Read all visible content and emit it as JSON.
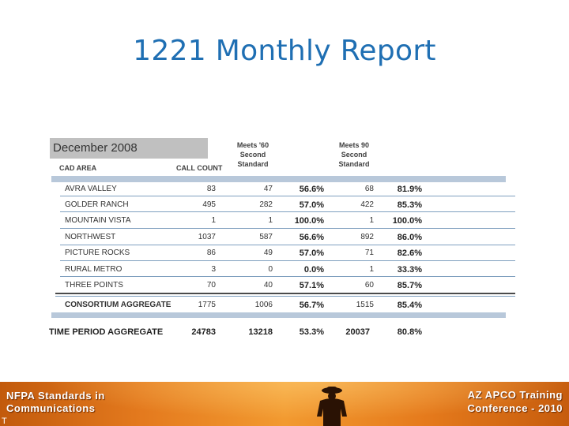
{
  "title": "1221 Monthly Report",
  "report": {
    "month": "December 2008",
    "headers": {
      "cad_area": "CAD AREA",
      "call_count": "CALL COUNT",
      "meets60": [
        "Meets '60",
        "Second",
        "Standard"
      ],
      "meets90": [
        "Meets 90",
        "Second",
        "Standard"
      ]
    },
    "rows": [
      {
        "area": "AVRA VALLEY",
        "calls": "83",
        "m60": "47",
        "p60": "56.6%",
        "m90": "68",
        "p90": "81.9%"
      },
      {
        "area": "GOLDER RANCH",
        "calls": "495",
        "m60": "282",
        "p60": "57.0%",
        "m90": "422",
        "p90": "85.3%"
      },
      {
        "area": "MOUNTAIN VISTA",
        "calls": "1",
        "m60": "1",
        "p60": "100.0%",
        "m90": "1",
        "p90": "100.0%"
      },
      {
        "area": "NORTHWEST",
        "calls": "1037",
        "m60": "587",
        "p60": "56.6%",
        "m90": "892",
        "p90": "86.0%"
      },
      {
        "area": "PICTURE ROCKS",
        "calls": "86",
        "m60": "49",
        "p60": "57.0%",
        "m90": "71",
        "p90": "82.6%"
      },
      {
        "area": "RURAL METRO",
        "calls": "3",
        "m60": "0",
        "p60": "0.0%",
        "m90": "1",
        "p90": "33.3%"
      },
      {
        "area": "THREE POINTS",
        "calls": "70",
        "m60": "40",
        "p60": "57.1%",
        "m90": "60",
        "p90": "85.7%"
      }
    ],
    "consortium": {
      "area": "CONSORTIUM AGGREGATE",
      "calls": "1775",
      "m60": "1006",
      "p60": "56.7%",
      "m90": "1515",
      "p90": "85.4%"
    },
    "time_period": {
      "area": "TIME PERIOD AGGREGATE",
      "calls": "24783",
      "m60": "13218",
      "p60": "53.3%",
      "m90": "20037",
      "p90": "80.8%"
    }
  },
  "footer": {
    "left_line1": "NFPA Standards in",
    "left_line2": "Communications",
    "right_line1": "AZ APCO Training",
    "right_line2": "Conference - 2010",
    "fragment": "T"
  }
}
